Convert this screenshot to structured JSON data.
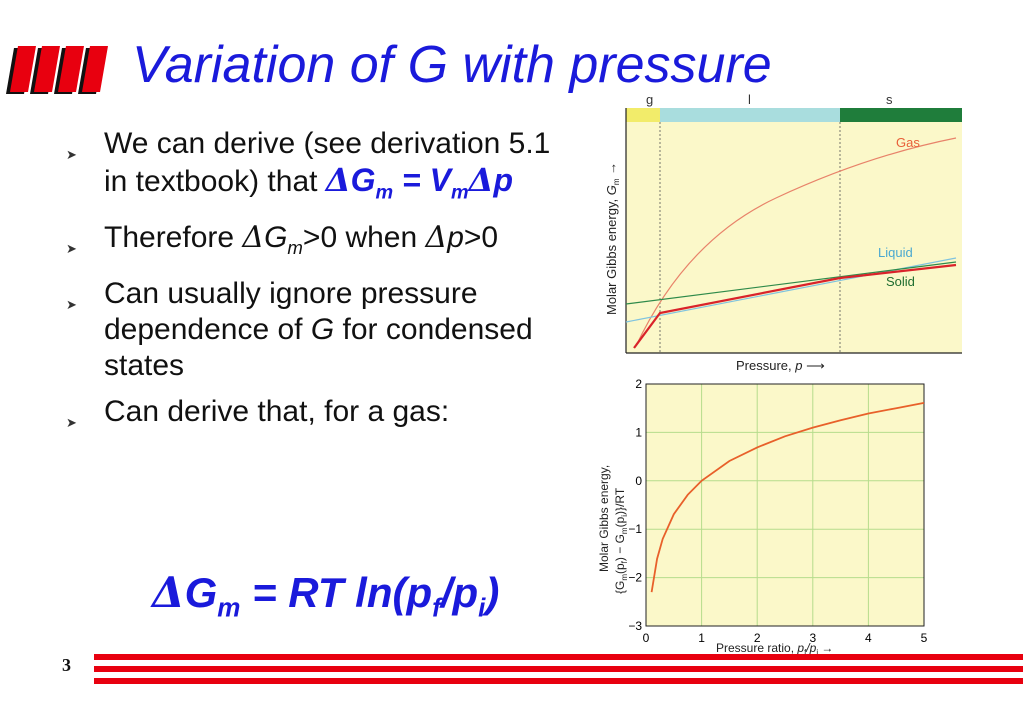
{
  "slide": {
    "title": "Variation of G with pressure",
    "page_number": "3"
  },
  "bullets": [
    {
      "text": "We can derive (see derivation 5.1 in textbook) that ",
      "eq": "ΔGm = VmΔp"
    },
    {
      "text": "Therefore ΔGm>0 when Δp>0"
    },
    {
      "text": "Can usually ignore pressure dependence of G for condensed states"
    },
    {
      "text": "Can derive that, for a gas:"
    }
  ],
  "equation": "ΔGm = RT ln(pf/pi)",
  "chart_data": [
    {
      "type": "line",
      "xlabel": "Pressure, p",
      "ylabel": "Molar Gibbs energy, Gm",
      "phase_bands": [
        "g",
        "l",
        "s"
      ],
      "series": [
        {
          "name": "Gas",
          "color": "#e8836a",
          "values": [
            "low",
            "rises steeply, then flattens"
          ]
        },
        {
          "name": "Liquid",
          "color": "#7fc3df",
          "values": [
            "linear, moderate slope"
          ]
        },
        {
          "name": "Solid",
          "color": "#2e8a4a",
          "values": [
            "linear, shallow slope"
          ]
        }
      ],
      "band_colors": {
        "g": "#f2ec6a",
        "l": "#a9ddde",
        "s": "#1f7d3b"
      },
      "background": "#fbf8c9"
    },
    {
      "type": "line",
      "xlabel": "Pressure ratio, pf/pi",
      "ylabel": "Molar Gibbs energy, {Gm(pf) − Gm(pi)}/RT",
      "xlim": [
        0,
        5
      ],
      "ylim": [
        -3,
        2
      ],
      "xticks": [
        "0",
        "1",
        "2",
        "3",
        "4",
        "5"
      ],
      "yticks": [
        "2",
        "1",
        "0",
        "−1",
        "−2",
        "−3"
      ],
      "series": [
        {
          "name": "",
          "color": "#e8602a",
          "x": [
            0.1,
            0.2,
            0.3,
            0.5,
            0.75,
            1,
            1.5,
            2,
            2.5,
            3,
            3.5,
            4,
            4.5,
            5
          ],
          "values": [
            -2.3,
            -1.61,
            -1.2,
            -0.69,
            -0.29,
            0,
            0.41,
            0.69,
            0.92,
            1.1,
            1.25,
            1.39,
            1.5,
            1.61
          ]
        }
      ],
      "grid": true,
      "background": "#fbf8c9"
    }
  ]
}
